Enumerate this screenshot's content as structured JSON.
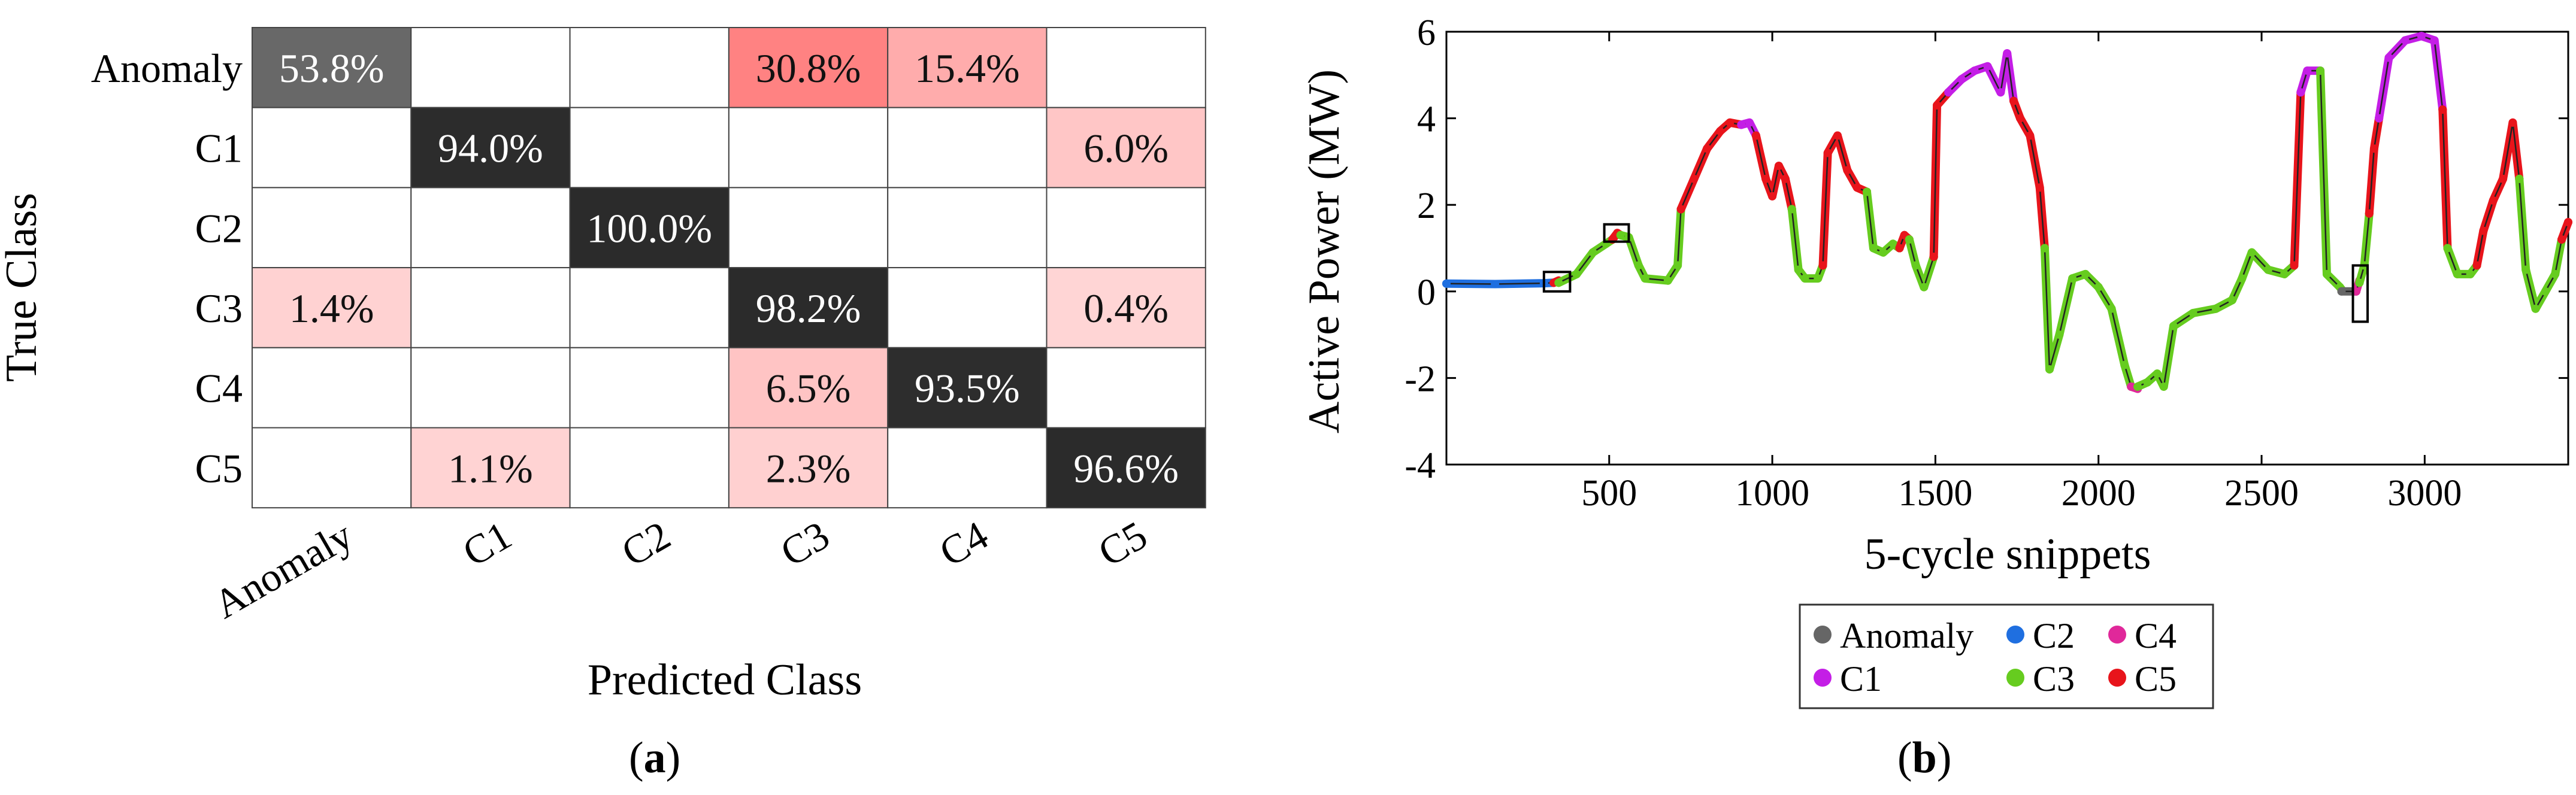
{
  "panel_a": {
    "label_letter": "a",
    "ylabel": "True Class",
    "xlabel": "Predicted Class"
  },
  "panel_b": {
    "label_letter": "b",
    "ylabel": "Active Power (MW)",
    "xlabel": "5-cycle snippets",
    "legend": [
      {
        "name": "Anomaly",
        "color": "#666666"
      },
      {
        "name": "C2",
        "color": "#1f6fe0"
      },
      {
        "name": "C4",
        "color": "#e0289a"
      },
      {
        "name": "C1",
        "color": "#c41ee6"
      },
      {
        "name": "C3",
        "color": "#66cc1f"
      },
      {
        "name": "C5",
        "color": "#e8141b"
      }
    ]
  },
  "colors": {
    "anomaly": "#666666",
    "c1": "#c41ee6",
    "c2": "#1f6fe0",
    "c3": "#66cc1f",
    "c4": "#e0289a",
    "c5": "#e8141b",
    "trace": "#222222",
    "heat_dark": "#2b2b2b",
    "heat_light": "#ffc8c8"
  },
  "chart_data": [
    {
      "type": "heatmap",
      "rows": [
        "Anomaly",
        "C1",
        "C2",
        "C3",
        "C4",
        "C5"
      ],
      "cols": [
        "Anomaly",
        "C1",
        "C2",
        "C3",
        "C4",
        "C5"
      ],
      "values": [
        [
          53.8,
          null,
          null,
          30.8,
          15.4,
          null
        ],
        [
          null,
          94.0,
          null,
          null,
          null,
          6.0
        ],
        [
          null,
          null,
          100.0,
          null,
          null,
          null
        ],
        [
          1.4,
          null,
          null,
          98.2,
          null,
          0.4
        ],
        [
          null,
          null,
          null,
          6.5,
          93.5,
          null
        ],
        [
          null,
          1.1,
          null,
          2.3,
          null,
          96.6
        ]
      ],
      "labels": [
        [
          "53.8%",
          "",
          "",
          "30.8%",
          "15.4%",
          ""
        ],
        [
          "",
          "94.0%",
          "",
          "",
          "",
          "6.0%"
        ],
        [
          "",
          "",
          "100.0%",
          "",
          "",
          ""
        ],
        [
          "1.4%",
          "",
          "",
          "98.2%",
          "",
          "0.4%"
        ],
        [
          "",
          "",
          "",
          "6.5%",
          "93.5%",
          ""
        ],
        [
          "",
          "1.1%",
          "",
          "2.3%",
          "",
          "96.6%"
        ]
      ],
      "xlabel": "Predicted Class",
      "ylabel": "True Class"
    },
    {
      "type": "line",
      "xlabel": "5-cycle snippets",
      "ylabel": "Active Power (MW)",
      "xlim": [
        1,
        3440
      ],
      "ylim": [
        -4,
        6
      ],
      "xticks": [
        500,
        1000,
        1500,
        2000,
        2500,
        3000
      ],
      "yticks": [
        -4,
        -2,
        0,
        2,
        4,
        6
      ],
      "segments": [
        {
          "cls": "c2",
          "points": [
            [
              1,
              0.18
            ],
            [
              150,
              0.17
            ],
            [
              300,
              0.19
            ],
            [
              330,
              0.2
            ]
          ]
        },
        {
          "cls": "c5",
          "points": [
            [
              330,
              0.2
            ],
            [
              345,
              0.25
            ]
          ]
        },
        {
          "cls": "c3",
          "points": [
            [
              345,
              0.2
            ],
            [
              400,
              0.4
            ],
            [
              450,
              0.9
            ],
            [
              490,
              1.1
            ],
            [
              510,
              1.2
            ]
          ]
        },
        {
          "cls": "c5",
          "points": [
            [
              510,
              1.2
            ],
            [
              525,
              1.35
            ],
            [
              535,
              1.3
            ]
          ]
        },
        {
          "cls": "c3",
          "points": [
            [
              535,
              1.3
            ],
            [
              560,
              1.25
            ],
            [
              590,
              0.6
            ],
            [
              610,
              0.3
            ],
            [
              680,
              0.25
            ],
            [
              710,
              0.6
            ],
            [
              720,
              1.9
            ]
          ]
        },
        {
          "cls": "c5",
          "points": [
            [
              720,
              1.9
            ],
            [
              760,
              2.6
            ],
            [
              800,
              3.3
            ],
            [
              840,
              3.7
            ],
            [
              870,
              3.9
            ],
            [
              905,
              3.85
            ]
          ]
        },
        {
          "cls": "c1",
          "points": [
            [
              905,
              3.85
            ],
            [
              930,
              3.9
            ],
            [
              950,
              3.6
            ]
          ]
        },
        {
          "cls": "c5",
          "points": [
            [
              950,
              3.6
            ],
            [
              980,
              2.6
            ],
            [
              1000,
              2.2
            ],
            [
              1020,
              2.9
            ],
            [
              1040,
              2.6
            ],
            [
              1060,
              1.9
            ]
          ]
        },
        {
          "cls": "c3",
          "points": [
            [
              1060,
              1.9
            ],
            [
              1080,
              0.5
            ],
            [
              1100,
              0.3
            ],
            [
              1140,
              0.3
            ],
            [
              1155,
              0.6
            ]
          ]
        },
        {
          "cls": "c5",
          "points": [
            [
              1155,
              0.6
            ],
            [
              1170,
              3.2
            ],
            [
              1200,
              3.6
            ],
            [
              1230,
              2.8
            ],
            [
              1260,
              2.4
            ],
            [
              1290,
              2.3
            ]
          ]
        },
        {
          "cls": "c3",
          "points": [
            [
              1290,
              2.3
            ],
            [
              1310,
              1.0
            ],
            [
              1340,
              0.9
            ],
            [
              1370,
              1.1
            ],
            [
              1390,
              1.0
            ]
          ]
        },
        {
          "cls": "c5",
          "points": [
            [
              1390,
              1.0
            ],
            [
              1405,
              1.3
            ],
            [
              1420,
              1.2
            ]
          ]
        },
        {
          "cls": "c3",
          "points": [
            [
              1420,
              1.2
            ],
            [
              1440,
              0.6
            ],
            [
              1465,
              0.1
            ],
            [
              1495,
              0.8
            ]
          ]
        },
        {
          "cls": "c5",
          "points": [
            [
              1495,
              0.8
            ],
            [
              1505,
              4.3
            ],
            [
              1540,
              4.6
            ]
          ]
        },
        {
          "cls": "c1",
          "points": [
            [
              1540,
              4.6
            ],
            [
              1580,
              4.9
            ],
            [
              1620,
              5.1
            ],
            [
              1660,
              5.2
            ],
            [
              1700,
              4.6
            ],
            [
              1720,
              5.5
            ],
            [
              1740,
              4.4
            ]
          ]
        },
        {
          "cls": "c5",
          "points": [
            [
              1740,
              4.4
            ],
            [
              1760,
              4.0
            ],
            [
              1790,
              3.6
            ],
            [
              1820,
              2.4
            ],
            [
              1835,
              1.0
            ]
          ]
        },
        {
          "cls": "c3",
          "points": [
            [
              1835,
              1.0
            ],
            [
              1850,
              -1.8
            ],
            [
              1880,
              -1.0
            ],
            [
              1920,
              0.3
            ],
            [
              1960,
              0.4
            ],
            [
              2000,
              0.1
            ],
            [
              2040,
              -0.4
            ],
            [
              2080,
              -1.7
            ],
            [
              2100,
              -2.2
            ]
          ]
        },
        {
          "cls": "c4",
          "points": [
            [
              2100,
              -2.2
            ],
            [
              2120,
              -2.25
            ]
          ]
        },
        {
          "cls": "c3",
          "points": [
            [
              2120,
              -2.2
            ],
            [
              2150,
              -2.1
            ],
            [
              2180,
              -1.9
            ],
            [
              2200,
              -2.2
            ],
            [
              2230,
              -0.8
            ],
            [
              2290,
              -0.5
            ],
            [
              2360,
              -0.4
            ],
            [
              2410,
              -0.2
            ],
            [
              2440,
              0.3
            ],
            [
              2470,
              0.9
            ],
            [
              2520,
              0.5
            ],
            [
              2570,
              0.4
            ],
            [
              2600,
              0.6
            ]
          ]
        },
        {
          "cls": "c5",
          "points": [
            [
              2600,
              0.6
            ],
            [
              2620,
              4.6
            ]
          ]
        },
        {
          "cls": "c1",
          "points": [
            [
              2620,
              4.6
            ],
            [
              2640,
              5.1
            ],
            [
              2680,
              5.1
            ]
          ]
        },
        {
          "cls": "c3",
          "points": [
            [
              2680,
              5.1
            ],
            [
              2700,
              0.4
            ],
            [
              2740,
              0.1
            ],
            [
              2745,
              0.05
            ]
          ]
        },
        {
          "cls": "anomaly",
          "points": [
            [
              2745,
              0.0
            ],
            [
              2790,
              0.0
            ]
          ]
        },
        {
          "cls": "c4",
          "points": [
            [
              2790,
              0.0
            ],
            [
              2800,
              0.25
            ]
          ]
        },
        {
          "cls": "c3",
          "points": [
            [
              2800,
              0.2
            ],
            [
              2815,
              0.6
            ],
            [
              2830,
              1.8
            ]
          ]
        },
        {
          "cls": "c5",
          "points": [
            [
              2830,
              1.8
            ],
            [
              2845,
              3.3
            ],
            [
              2860,
              4.0
            ]
          ]
        },
        {
          "cls": "c1",
          "points": [
            [
              2860,
              4.0
            ],
            [
              2890,
              5.4
            ],
            [
              2940,
              5.8
            ],
            [
              2990,
              5.9
            ],
            [
              3030,
              5.8
            ],
            [
              3055,
              4.2
            ]
          ]
        },
        {
          "cls": "c5",
          "points": [
            [
              3055,
              4.2
            ],
            [
              3070,
              1.0
            ]
          ]
        },
        {
          "cls": "c3",
          "points": [
            [
              3070,
              1.0
            ],
            [
              3100,
              0.4
            ],
            [
              3140,
              0.4
            ],
            [
              3160,
              0.6
            ]
          ]
        },
        {
          "cls": "c5",
          "points": [
            [
              3160,
              0.6
            ],
            [
              3180,
              1.4
            ],
            [
              3210,
              2.1
            ],
            [
              3240,
              2.6
            ],
            [
              3270,
              3.9
            ],
            [
              3290,
              2.6
            ]
          ]
        },
        {
          "cls": "c3",
          "points": [
            [
              3290,
              2.6
            ],
            [
              3310,
              0.5
            ],
            [
              3340,
              -0.4
            ],
            [
              3370,
              0.0
            ],
            [
              3400,
              0.4
            ],
            [
              3420,
              1.2
            ]
          ]
        },
        {
          "cls": "c5",
          "points": [
            [
              3420,
              1.2
            ],
            [
              3440,
              1.6
            ]
          ]
        }
      ],
      "highlight_boxes": [
        {
          "x": [
            300,
            380
          ],
          "y": [
            0.0,
            0.45
          ]
        },
        {
          "x": [
            485,
            560
          ],
          "y": [
            1.15,
            1.55
          ]
        },
        {
          "x": [
            2780,
            2825
          ],
          "y": [
            -0.7,
            0.6
          ]
        }
      ]
    }
  ]
}
